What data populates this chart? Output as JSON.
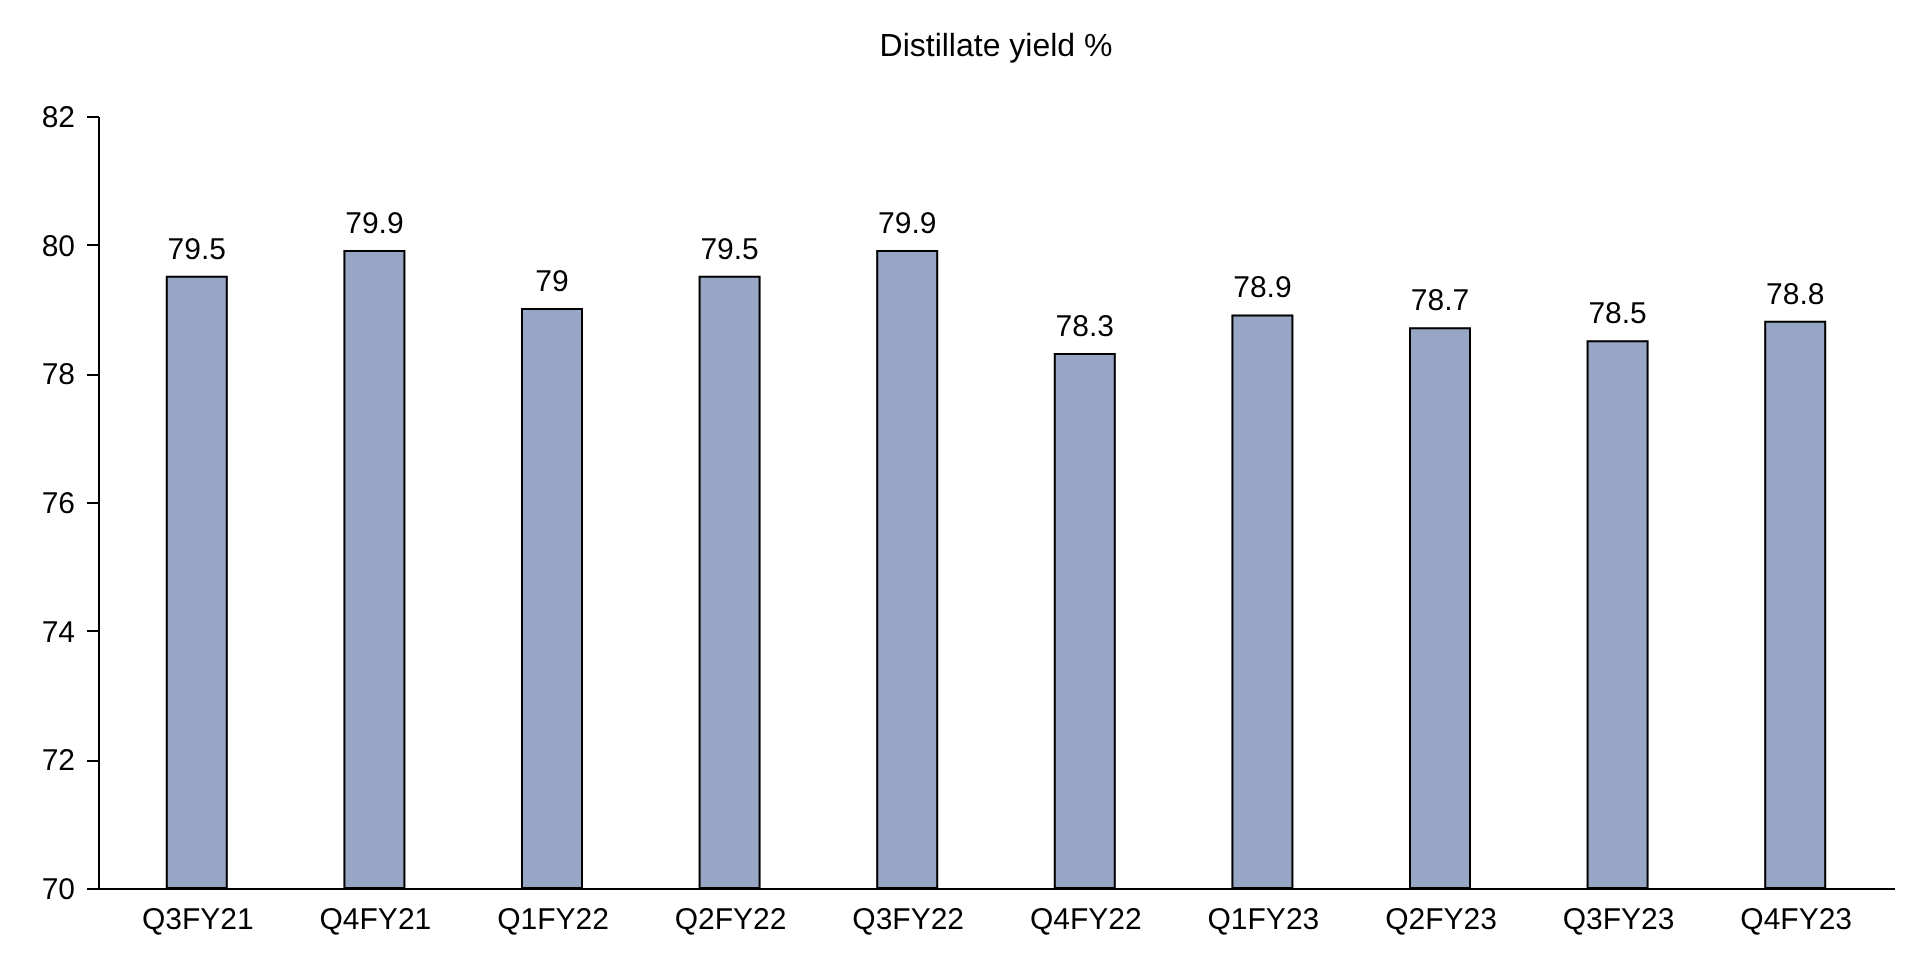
{
  "chart_data": {
    "type": "bar",
    "title": "Distillate yield %",
    "categories": [
      "Q3FY21",
      "Q4FY21",
      "Q1FY22",
      "Q2FY22",
      "Q3FY22",
      "Q4FY22",
      "Q1FY23",
      "Q2FY23",
      "Q3FY23",
      "Q4FY23"
    ],
    "values": [
      79.5,
      79.9,
      79,
      79.5,
      79.9,
      78.3,
      78.9,
      78.7,
      78.5,
      78.8
    ],
    "color": "#97a6c4",
    "ylim": [
      70,
      82
    ],
    "yticks": [
      70,
      72,
      74,
      76,
      78,
      80,
      82
    ],
    "grid": false,
    "data_labels": true
  }
}
